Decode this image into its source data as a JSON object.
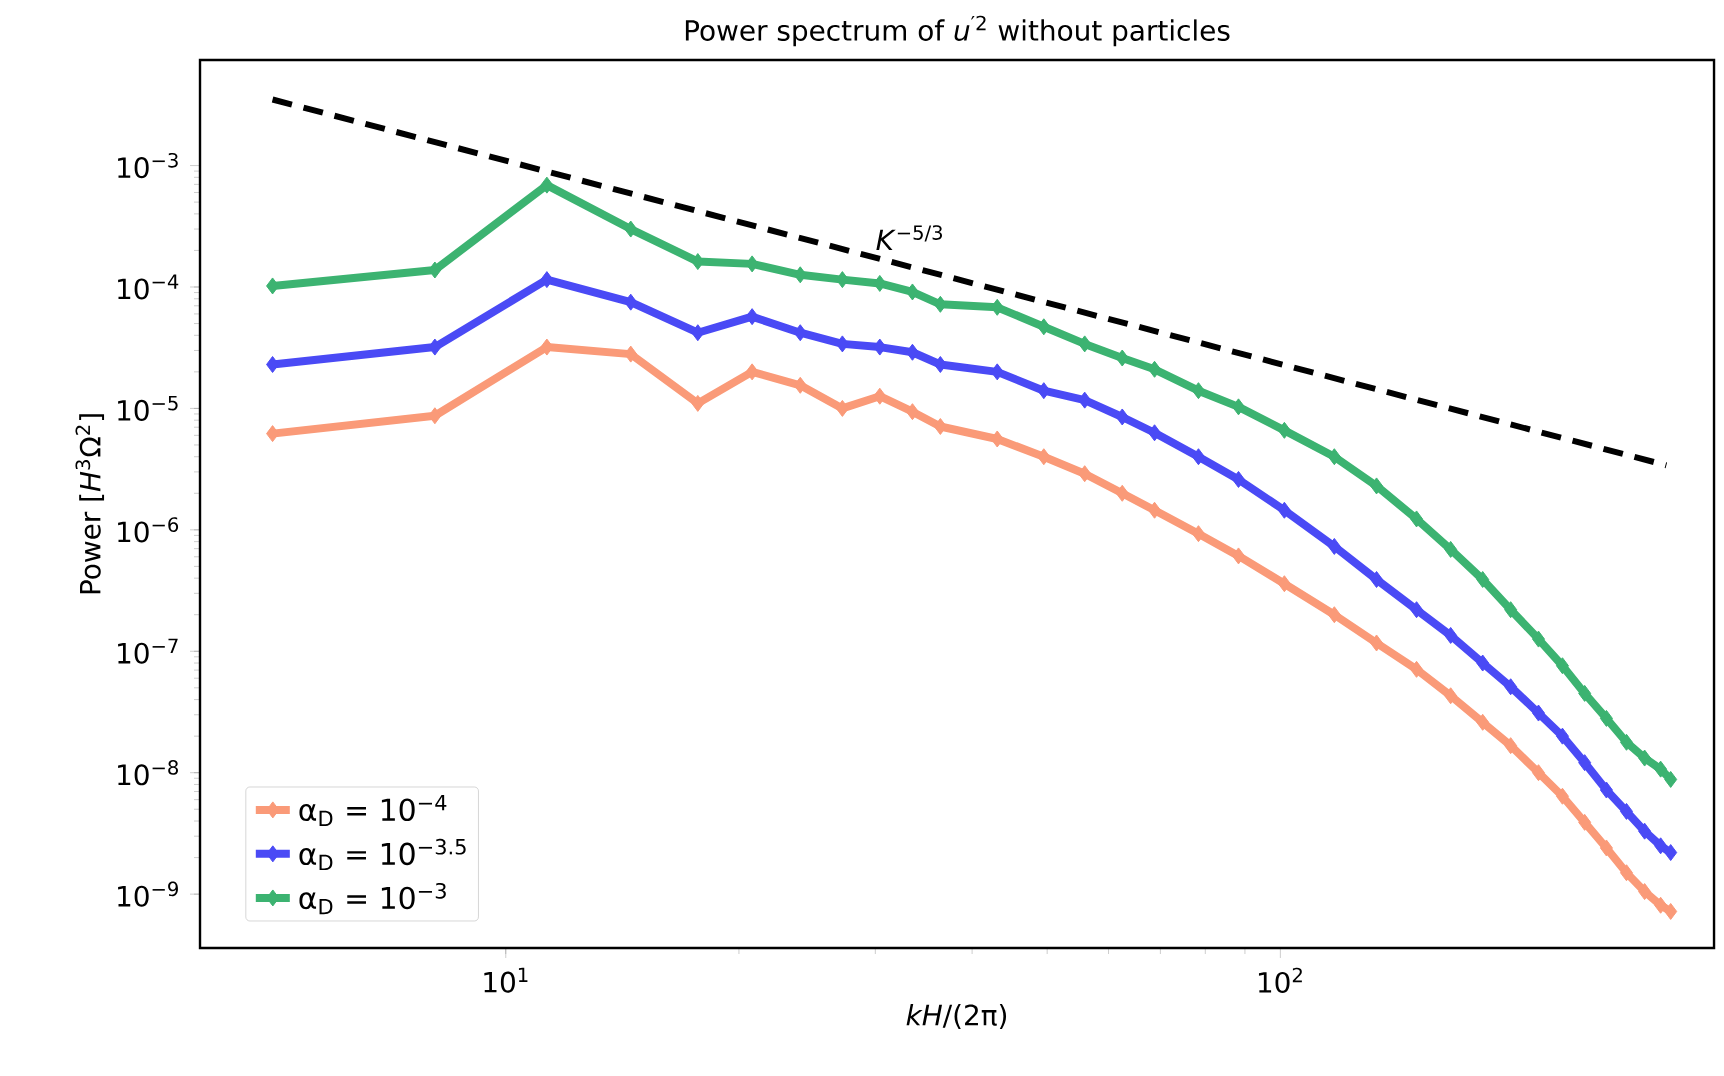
{
  "chart_data": {
    "type": "line",
    "title": "Power spectrum of *u*$^{′2}$ without particles",
    "xlabel": "*kH*/(2π)",
    "ylabel": "Power [*H*$^{3}$Ω$^{2}$]",
    "log": "xy",
    "xlim": [
      4.03,
      363
    ],
    "ylim": [
      3.6e-10,
      0.0074
    ],
    "xticks": [
      {
        "value": 10,
        "label": "10$^{1}$"
      },
      {
        "value": 100,
        "label": "10$^{2}$"
      }
    ],
    "yticks": [
      {
        "value": 1e-09,
        "label": "10$^{−9}$"
      },
      {
        "value": 1e-08,
        "label": "10$^{−8}$"
      },
      {
        "value": 1e-07,
        "label": "10$^{−7}$"
      },
      {
        "value": 1e-06,
        "label": "10$^{−6}$"
      },
      {
        "value": 1e-05,
        "label": "10$^{−5}$"
      },
      {
        "value": 0.0001,
        "label": "10$^{−4}$"
      },
      {
        "value": 0.001,
        "label": "10$^{−3}$"
      }
    ],
    "x": [
      5.0,
      8.1,
      11.3,
      14.5,
      17.7,
      20.8,
      24.0,
      27.2,
      30.4,
      33.5,
      36.4,
      43.1,
      49.5,
      55.9,
      62.5,
      68.8,
      78.4,
      88.3,
      101.2,
      117.4,
      133.1,
      149.9,
      165.9,
      182.5,
      198.3,
      215.4,
      231.3,
      247.1,
      263.6,
      279.8,
      295.3,
      309.7,
      319.1
    ],
    "marker": "diamond",
    "legend": "bottom left",
    "grid": false,
    "series": [
      {
        "name": "α$_{D}$ = 10$^{−4}$",
        "color": "#fa9a78",
        "values": [
          6.2e-06,
          8.7e-06,
          3.2e-05,
          2.8e-05,
          1.1e-05,
          2e-05,
          1.55e-05,
          1e-05,
          1.26e-05,
          9.4e-06,
          7.1e-06,
          5.6e-06,
          4e-06,
          2.9e-06,
          2e-06,
          1.45e-06,
          9.3e-07,
          6.1e-07,
          3.6e-07,
          2e-07,
          1.17e-07,
          7.1e-08,
          4.3e-08,
          2.6e-08,
          1.67e-08,
          1e-08,
          6.4e-09,
          3.9e-09,
          2.4e-09,
          1.5e-09,
          1.05e-09,
          8.1e-10,
          7.2e-10
        ]
      },
      {
        "name": "α$_{D}$ = 10$^{−3.5}$",
        "color": "#4a4af5",
        "values": [
          2.3e-05,
          3.2e-05,
          0.000115,
          7.5e-05,
          4.2e-05,
          5.7e-05,
          4.2e-05,
          3.4e-05,
          3.2e-05,
          2.9e-05,
          2.3e-05,
          2e-05,
          1.4e-05,
          1.17e-05,
          8.5e-06,
          6.3e-06,
          4e-06,
          2.6e-06,
          1.45e-06,
          7.3e-07,
          3.9e-07,
          2.2e-07,
          1.35e-07,
          8e-08,
          5.1e-08,
          3.1e-08,
          2e-08,
          1.21e-08,
          7.2e-09,
          4.8e-09,
          3.3e-09,
          2.5e-09,
          2.2e-09
        ]
      },
      {
        "name": "α$_{D}$ = 10$^{−3}$",
        "color": "#3cb371",
        "values": [
          0.000102,
          0.000138,
          0.00069,
          0.0003,
          0.000162,
          0.000155,
          0.000126,
          0.000115,
          0.000107,
          9.1e-05,
          7.2e-05,
          6.8e-05,
          4.7e-05,
          3.4e-05,
          2.6e-05,
          2.1e-05,
          1.4e-05,
          1.03e-05,
          6.6e-06,
          4e-06,
          2.3e-06,
          1.23e-06,
          6.9e-07,
          3.9e-07,
          2.2e-07,
          1.26e-07,
          7.6e-08,
          4.5e-08,
          2.8e-08,
          1.78e-08,
          1.32e-08,
          1.07e-08,
          8.8e-09
        ]
      },
      {
        "type": "line",
        "color": "#000000",
        "line_style": "dashed",
        "marker": "none",
        "x": [
          5.0,
          315
        ],
        "values": [
          0.0035,
          3.4e-06
        ]
      }
    ],
    "annotations": [
      "*K*$^{−5/3}$"
    ]
  }
}
